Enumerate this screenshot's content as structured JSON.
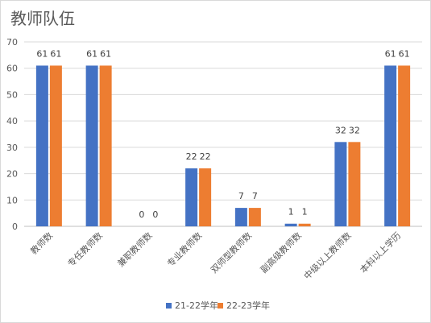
{
  "chart_data": {
    "type": "bar",
    "title": "教师队伍",
    "categories": [
      "教师数",
      "专任教师数",
      "兼职教师数",
      "专业教师数",
      "双师型教师数",
      "副高级教师数",
      "中级以上教师数",
      "本科以上学历"
    ],
    "series": [
      {
        "name": "21-22学年",
        "color": "#4472c4",
        "values": [
          61,
          61,
          0,
          22,
          7,
          1,
          32,
          61
        ]
      },
      {
        "name": "22-23学年",
        "color": "#ed7d31",
        "values": [
          61,
          61,
          0,
          22,
          7,
          1,
          32,
          61
        ]
      }
    ],
    "ylim": [
      0,
      70
    ],
    "yticks": [
      0,
      10,
      20,
      30,
      40,
      50,
      60,
      70
    ],
    "grid": true,
    "legend": "bottom"
  }
}
